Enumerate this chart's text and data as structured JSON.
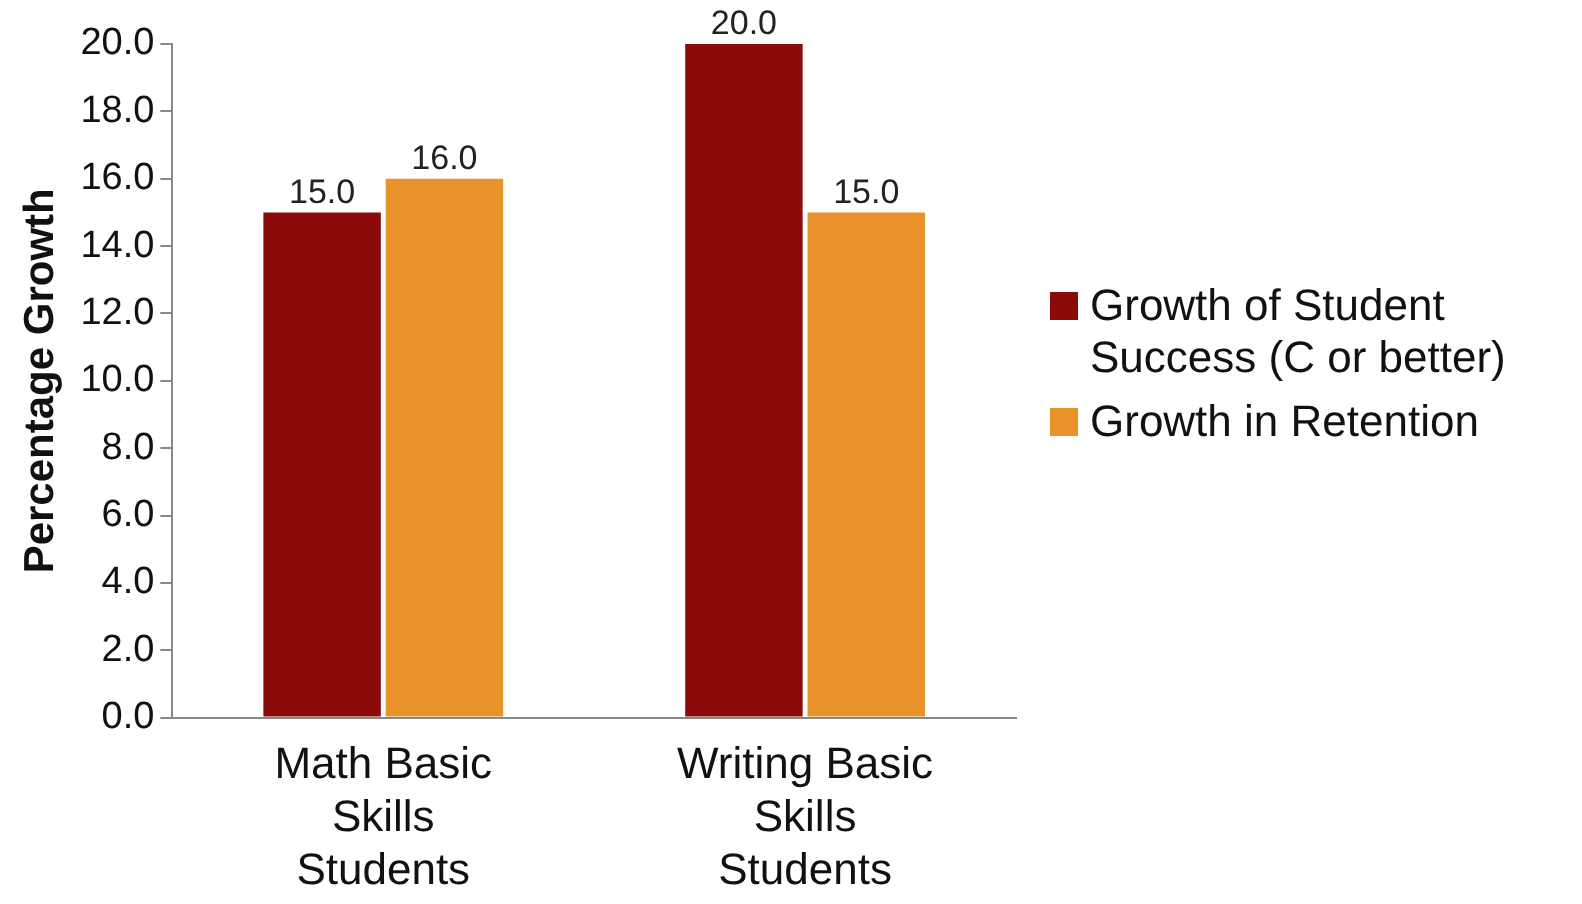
{
  "chart_data": {
    "type": "bar",
    "ylabel": "Percentage Growth",
    "categories": [
      "Math Basic Skills Students",
      "Writing Basic Skills Students"
    ],
    "series": [
      {
        "name": "Growth of Student Success (C or better)",
        "color": "#8b0a0a",
        "values": [
          15,
          20
        ],
        "value_labels": [
          "15.0",
          "20.0"
        ]
      },
      {
        "name": "Growth in Retention",
        "color": "#e8922a",
        "values": [
          16,
          15
        ],
        "value_labels": [
          "16.0",
          "15.0"
        ]
      }
    ],
    "ylim": [
      0,
      20
    ],
    "yticks": [
      {
        "value": 0,
        "label": "0.0"
      },
      {
        "value": 2,
        "label": "2.0"
      },
      {
        "value": 4,
        "label": "4.0"
      },
      {
        "value": 6,
        "label": "6.0"
      },
      {
        "value": 8,
        "label": "8.0"
      },
      {
        "value": 10,
        "label": "10.0"
      },
      {
        "value": 12,
        "label": "12.0"
      },
      {
        "value": 14,
        "label": "14.0"
      },
      {
        "value": 16,
        "label": "16.0"
      },
      {
        "value": 18,
        "label": "18.0"
      },
      {
        "value": 20,
        "label": "20.0"
      }
    ],
    "grid": false,
    "legend": "right"
  }
}
